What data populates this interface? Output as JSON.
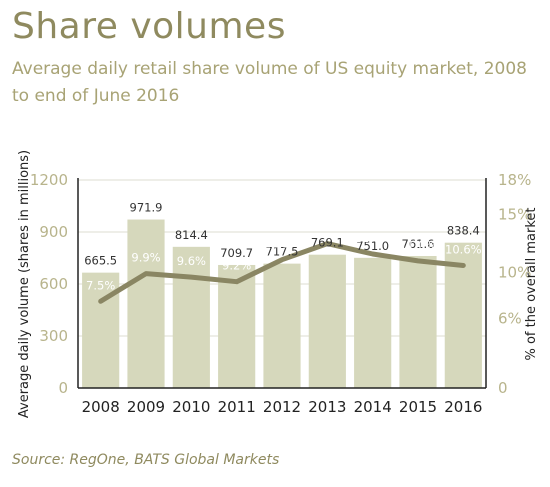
{
  "chart_data": {
    "type": "bar",
    "title": "Share volumes",
    "subtitle": "Average daily retail share volume of US equity market, 2008 to end of June 2016",
    "source": "Source: RegOne, BATS Global Markets",
    "categories": [
      "2008",
      "2009",
      "2010",
      "2011",
      "2012",
      "2013",
      "2014",
      "2015",
      "2016"
    ],
    "series": [
      {
        "name": "Average daily volume",
        "type": "bar",
        "axis": "left",
        "values": [
          665.5,
          971.9,
          814.4,
          709.7,
          717.5,
          769.1,
          751.0,
          761.6,
          838.4
        ],
        "labels": [
          "665.5",
          "971.9",
          "814.4",
          "709.7",
          "717.5",
          "769.1",
          "751.0",
          "761.6",
          "838.4"
        ]
      },
      {
        "name": "% of the overall market",
        "type": "line",
        "axis": "right",
        "values": [
          7.5,
          9.9,
          9.6,
          9.2,
          11.1,
          12.5,
          11.6,
          11.0,
          10.6
        ],
        "labels": [
          "7.5%",
          "9.9%",
          "9.6%",
          "9.2%",
          "11.1%",
          "12.5%",
          "11.6%",
          "11.0%",
          "10.6%"
        ]
      }
    ],
    "ylabel": "Average daily volume (shares in millions)",
    "y2label": "% of the overall market",
    "ylim": [
      0,
      1200
    ],
    "y2lim": [
      0,
      18
    ],
    "yticks": [
      "0",
      "300",
      "600",
      "900",
      "1200"
    ],
    "y2ticks": [
      "0",
      "6%",
      "10%",
      "15%",
      "18%"
    ],
    "grid": true,
    "colors": {
      "bar": "#d6d8bc",
      "line": "#8a8663",
      "title": "#8f8a5f",
      "tick": "#b8b48c"
    }
  }
}
